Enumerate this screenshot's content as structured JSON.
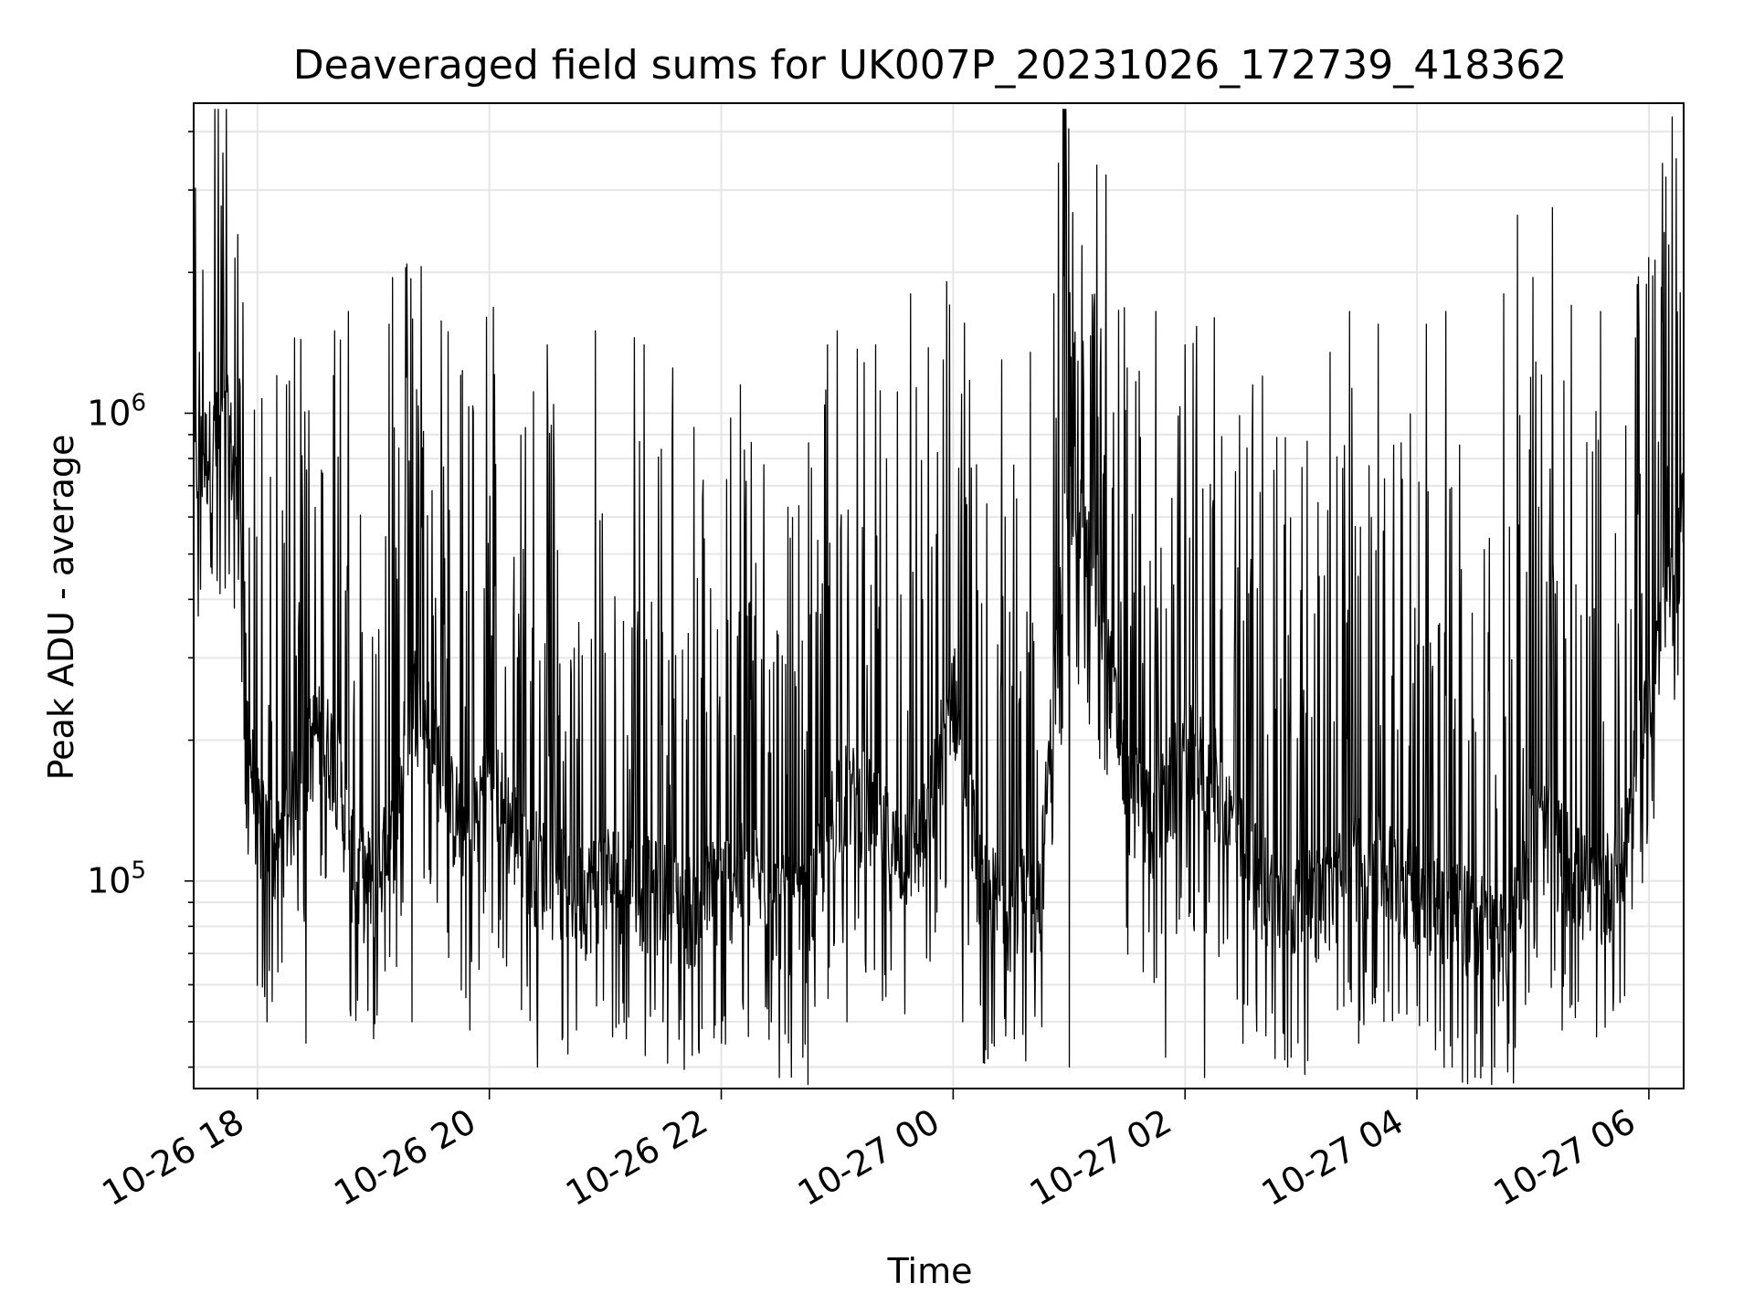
{
  "chart_data": {
    "type": "line",
    "title": "Deaveraged field sums for UK007P_20231026_172739_418362",
    "xlabel": "Time",
    "ylabel": "Peak ADU - average",
    "y_scale": "log",
    "ylim": [
      36000,
      4600000
    ],
    "xlim": [
      "2023-10-26 17:27",
      "2023-10-27 06:18"
    ],
    "grid": true,
    "line_color": "#000000",
    "x_ticks": [
      {
        "value": "2023-10-26 18:00",
        "label": "10-26 18"
      },
      {
        "value": "2023-10-26 20:00",
        "label": "10-26 20"
      },
      {
        "value": "2023-10-26 22:00",
        "label": "10-26 22"
      },
      {
        "value": "2023-10-27 00:00",
        "label": "10-27 00"
      },
      {
        "value": "2023-10-27 02:00",
        "label": "10-27 02"
      },
      {
        "value": "2023-10-27 04:00",
        "label": "10-27 04"
      },
      {
        "value": "2023-10-27 06:00",
        "label": "10-27 06"
      }
    ],
    "y_ticks": [
      {
        "value": 100000,
        "base": "10",
        "exp": "5"
      },
      {
        "value": 1000000,
        "base": "10",
        "exp": "6"
      }
    ],
    "series": [
      {
        "x": [
          "2023-10-26 17:27",
          "2023-10-26 17:35",
          "2023-10-26 17:45",
          "2023-10-26 17:52",
          "2023-10-26 17:55",
          "2023-10-26 18:00",
          "2023-10-26 18:10",
          "2023-10-26 18:20",
          "2023-10-26 18:30",
          "2023-10-26 18:40",
          "2023-10-26 18:50",
          "2023-10-26 19:00",
          "2023-10-26 19:10",
          "2023-10-26 19:20",
          "2023-10-26 19:30",
          "2023-10-26 19:40",
          "2023-10-26 19:50",
          "2023-10-26 20:00",
          "2023-10-26 20:10",
          "2023-10-26 20:20",
          "2023-10-26 20:30",
          "2023-10-26 20:40",
          "2023-10-26 20:50",
          "2023-10-26 21:00",
          "2023-10-26 21:15",
          "2023-10-26 21:30",
          "2023-10-26 21:45",
          "2023-10-26 22:00",
          "2023-10-26 22:15",
          "2023-10-26 22:30",
          "2023-10-26 22:45",
          "2023-10-26 23:00",
          "2023-10-26 23:15",
          "2023-10-26 23:30",
          "2023-10-26 23:45",
          "2023-10-27 00:00",
          "2023-10-27 00:15",
          "2023-10-27 00:30",
          "2023-10-27 00:45",
          "2023-10-27 01:00",
          "2023-10-27 01:15",
          "2023-10-27 01:30",
          "2023-10-27 01:45",
          "2023-10-27 02:00",
          "2023-10-27 02:15",
          "2023-10-27 02:30",
          "2023-10-27 02:45",
          "2023-10-27 03:00",
          "2023-10-27 03:15",
          "2023-10-27 03:30",
          "2023-10-27 03:45",
          "2023-10-27 04:00",
          "2023-10-27 04:15",
          "2023-10-27 04:30",
          "2023-10-27 04:45",
          "2023-10-27 05:00",
          "2023-10-27 05:15",
          "2023-10-27 05:30",
          "2023-10-27 05:45",
          "2023-10-27 06:00",
          "2023-10-27 06:10",
          "2023-10-27 06:18"
        ],
        "y": [
          750000,
          800000,
          900000,
          500000,
          200000,
          130000,
          110000,
          150000,
          200000,
          180000,
          100000,
          95000,
          120000,
          250000,
          200000,
          140000,
          120000,
          170000,
          130000,
          110000,
          100000,
          95000,
          90000,
          100000,
          95000,
          90000,
          85000,
          95000,
          100000,
          85000,
          80000,
          150000,
          140000,
          110000,
          120000,
          250000,
          90000,
          85000,
          90000,
          700000,
          400000,
          150000,
          130000,
          180000,
          160000,
          110000,
          90000,
          85000,
          90000,
          110000,
          100000,
          95000,
          85000,
          80000,
          70000,
          130000,
          110000,
          90000,
          100000,
          250000,
          350000,
          600000
        ],
        "spikes_low": [
          [
            "2023-10-26 18:05",
            50000
          ],
          [
            "2023-10-26 18:25",
            45000
          ],
          [
            "2023-10-26 18:40",
            45000
          ],
          [
            "2023-10-26 19:20",
            50000
          ],
          [
            "2023-10-26 19:50",
            48000
          ],
          [
            "2023-10-26 20:25",
            40000
          ],
          [
            "2023-10-26 20:45",
            48000
          ],
          [
            "2023-10-26 21:30",
            50000
          ],
          [
            "2023-10-26 22:00",
            45000
          ],
          [
            "2023-10-26 22:10",
            40000
          ],
          [
            "2023-10-26 22:30",
            38000
          ],
          [
            "2023-10-26 22:45",
            36000
          ],
          [
            "2023-10-26 23:05",
            50000
          ],
          [
            "2023-10-26 23:35",
            52000
          ],
          [
            "2023-10-27 00:05",
            50000
          ],
          [
            "2023-10-27 00:20",
            45000
          ],
          [
            "2023-10-27 01:00",
            40000
          ],
          [
            "2023-10-27 01:30",
            45000
          ],
          [
            "2023-10-27 01:50",
            42000
          ],
          [
            "2023-10-27 02:10",
            38000
          ],
          [
            "2023-10-27 02:30",
            45000
          ],
          [
            "2023-10-27 02:55",
            42000
          ],
          [
            "2023-10-27 03:30",
            45000
          ],
          [
            "2023-10-27 04:15",
            42000
          ],
          [
            "2023-10-27 04:40",
            40000
          ],
          [
            "2023-10-27 04:50",
            37000
          ],
          [
            "2023-10-27 05:15",
            48000
          ],
          [
            "2023-10-27 05:45",
            55000
          ]
        ],
        "spikes_high": [
          [
            "2023-10-26 17:30",
            1350000
          ],
          [
            "2023-10-26 18:15",
            1150000
          ],
          [
            "2023-10-26 18:40",
            1500000
          ],
          [
            "2023-10-26 18:47",
            1650000
          ],
          [
            "2023-10-26 19:08",
            1550000
          ],
          [
            "2023-10-26 19:10",
            1950000
          ],
          [
            "2023-10-26 20:30",
            1400000
          ],
          [
            "2023-10-26 20:55",
            1500000
          ],
          [
            "2023-10-26 21:15",
            1450000
          ],
          [
            "2023-10-26 21:20",
            1400000
          ],
          [
            "2023-10-26 21:35",
            1250000
          ],
          [
            "2023-10-26 22:10",
            1150000
          ],
          [
            "2023-10-26 22:55",
            1400000
          ],
          [
            "2023-10-26 23:00",
            1500000
          ],
          [
            "2023-10-26 23:20",
            1400000
          ],
          [
            "2023-10-26 23:38",
            1800000
          ],
          [
            "2023-10-26 23:55",
            1300000
          ],
          [
            "2023-10-27 00:25",
            1300000
          ],
          [
            "2023-10-27 00:40",
            1350000
          ],
          [
            "2023-10-27 00:52",
            1800000
          ],
          [
            "2023-10-27 01:30",
            1250000
          ],
          [
            "2023-10-27 01:45",
            1650000
          ],
          [
            "2023-10-27 02:00",
            1400000
          ],
          [
            "2023-10-27 02:15",
            1600000
          ],
          [
            "2023-10-27 02:35",
            1150000
          ],
          [
            "2023-10-27 02:40",
            1200000
          ],
          [
            "2023-10-27 03:15",
            1350000
          ],
          [
            "2023-10-27 03:25",
            1650000
          ],
          [
            "2023-10-27 03:40",
            1550000
          ],
          [
            "2023-10-27 04:05",
            1550000
          ],
          [
            "2023-10-27 04:15",
            1650000
          ],
          [
            "2023-10-27 04:45",
            1800000
          ],
          [
            "2023-10-27 04:52",
            2650000
          ],
          [
            "2023-10-27 05:00",
            1950000
          ],
          [
            "2023-10-27 05:10",
            2750000
          ],
          [
            "2023-10-27 05:20",
            1700000
          ],
          [
            "2023-10-27 05:35",
            1650000
          ],
          [
            "2023-10-27 05:55",
            1500000
          ],
          [
            "2023-10-27 06:00",
            2150000
          ],
          [
            "2023-10-27 06:12",
            4300000
          ],
          [
            "2023-10-27 06:14",
            3500000
          ]
        ]
      }
    ]
  }
}
